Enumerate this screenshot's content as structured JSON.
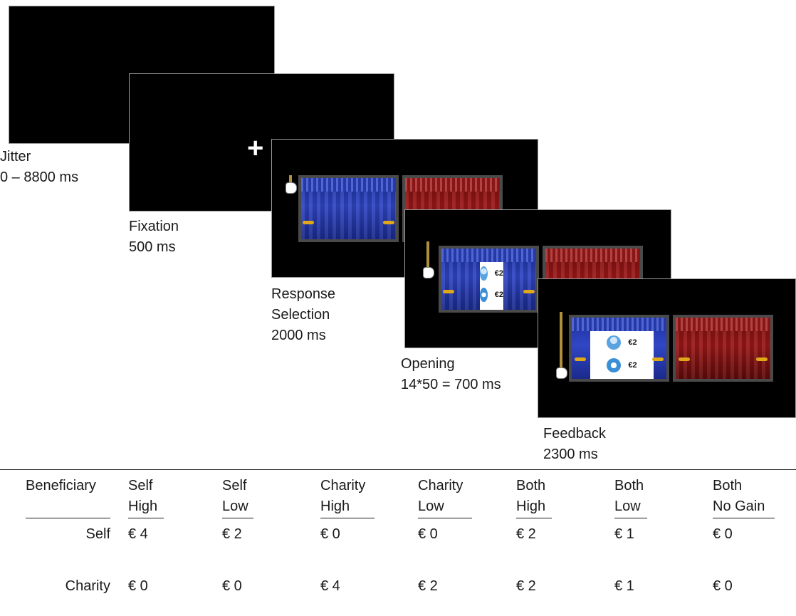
{
  "stages": [
    {
      "name": "Jitter",
      "duration": "0 – 8800 ms"
    },
    {
      "name": "Fixation",
      "duration": "500 ms",
      "fixation_symbol": "+"
    },
    {
      "name_line1": "Response",
      "name_line2": "Selection",
      "duration": "2000 ms"
    },
    {
      "name": "Opening",
      "duration": "14*50 = 700 ms",
      "prize_amount": "€2"
    },
    {
      "name": "Feedback",
      "duration": "2300 ms",
      "prize_amount": "€2"
    }
  ],
  "table": {
    "row_header": "Beneficiary",
    "columns": [
      {
        "line1": "Self",
        "line2": "High",
        "self": "€ 4",
        "charity": "€ 0"
      },
      {
        "line1": "Self",
        "line2": "Low",
        "self": "€ 2",
        "charity": "€ 0"
      },
      {
        "line1": "Charity",
        "line2": "High",
        "self": "€ 0",
        "charity": "€ 4"
      },
      {
        "line1": "Charity",
        "line2": "Low",
        "self": "€ 0",
        "charity": "€ 2"
      },
      {
        "line1": "Both",
        "line2": "High",
        "self": "€ 2",
        "charity": "€ 2"
      },
      {
        "line1": "Both",
        "line2": "Low",
        "self": "€ 1",
        "charity": "€ 1"
      },
      {
        "line1": "Both",
        "line2": "No Gain",
        "self": "€ 0",
        "charity": "€ 0"
      }
    ],
    "row_labels": {
      "self": "Self",
      "charity": "Charity"
    }
  },
  "colors": {
    "curtain_blue": "#2b44c6",
    "curtain_red": "#a11a1a",
    "tie_gold": "#e0a817",
    "screen_bg": "#000000"
  },
  "icons": [
    "fixation-cross",
    "pull-rope-icon",
    "person-icon",
    "unicef-icon",
    "curtain-stage"
  ]
}
